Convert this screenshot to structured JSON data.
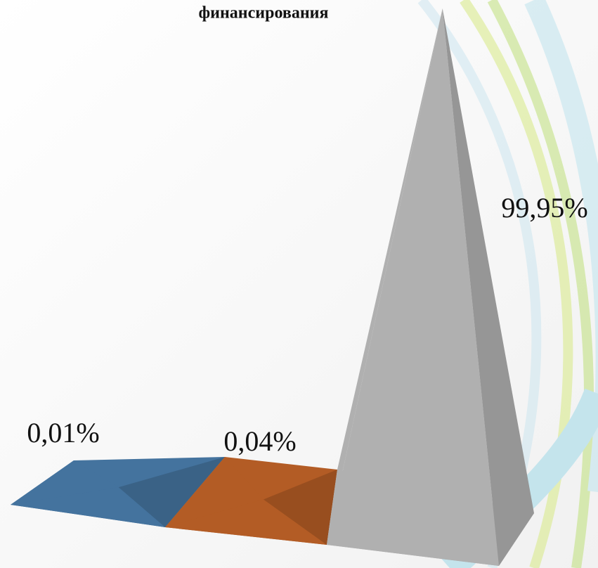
{
  "chart_data": {
    "type": "pyramid3d",
    "title": "финансирования",
    "categories": [
      null,
      null,
      null
    ],
    "values": [
      0.01,
      0.04,
      99.95
    ],
    "value_labels": [
      "0,01%",
      "0,04%",
      "99,95%"
    ],
    "colors": [
      "#44739e",
      "#b35c25",
      "#b0b0b0"
    ]
  }
}
